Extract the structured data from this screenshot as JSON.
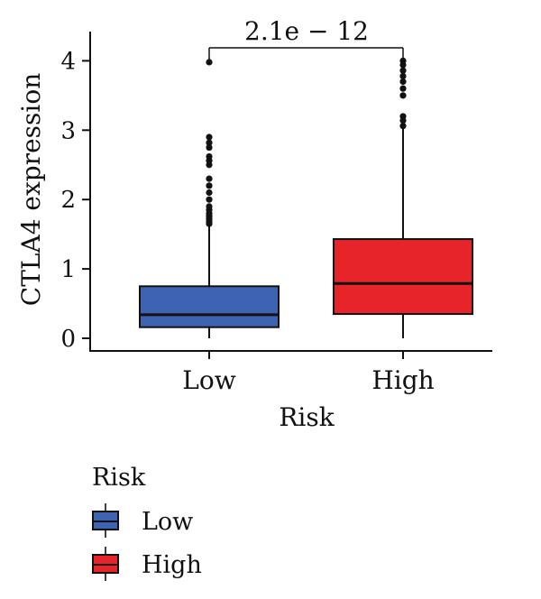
{
  "chart_data": {
    "type": "box",
    "ylabel": "CTLA4 expression",
    "xlabel": "Risk",
    "categories": [
      "Low",
      "High"
    ],
    "yticks": [
      0,
      1,
      2,
      3,
      4
    ],
    "ylim": [
      -0.18,
      4.3
    ],
    "boxes": [
      {
        "category": "Low",
        "color": "#3f63b3",
        "q1": 0.16,
        "median": 0.34,
        "q3": 0.75,
        "whisker_low": 0.0,
        "whisker_high": 1.62,
        "outliers": [
          1.65,
          1.68,
          1.72,
          1.76,
          1.8,
          1.85,
          1.9,
          2.0,
          2.1,
          2.2,
          2.3,
          2.5,
          2.56,
          2.62,
          2.75,
          2.82,
          2.9,
          3.98
        ]
      },
      {
        "category": "High",
        "color": "#e8242b",
        "q1": 0.35,
        "median": 0.79,
        "q3": 1.43,
        "whisker_low": 0.0,
        "whisker_high": 3.02,
        "outliers": [
          3.06,
          3.14,
          3.2,
          3.5,
          3.6,
          3.7,
          3.78,
          3.86,
          3.94,
          4.0
        ]
      }
    ],
    "pvalue": "2.1e − 12",
    "legend": {
      "title": "Risk",
      "items": [
        {
          "label": "Low",
          "color": "#3f63b3"
        },
        {
          "label": "High",
          "color": "#e8242b"
        }
      ]
    }
  }
}
